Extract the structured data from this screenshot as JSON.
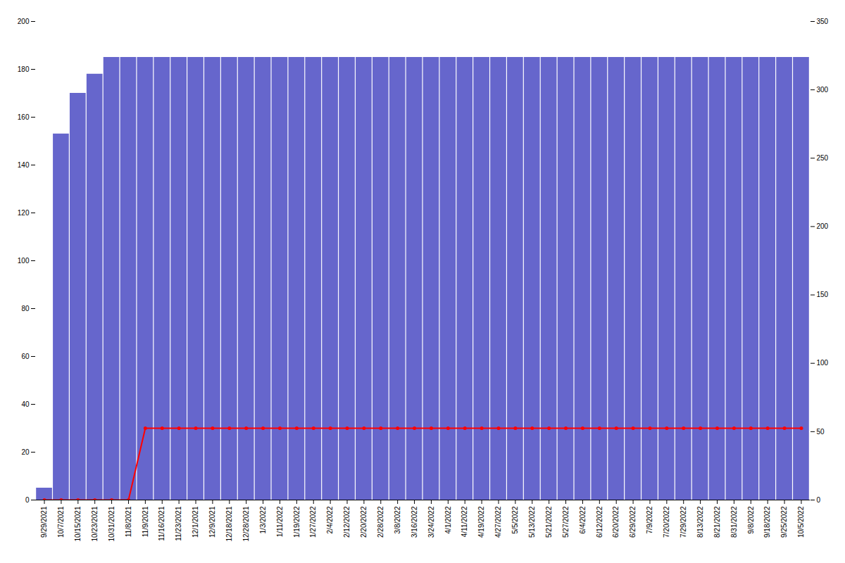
{
  "chart_data": {
    "type": "bar",
    "categories": [
      "9/29/2021",
      "10/7/2021",
      "10/15/2021",
      "10/23/2021",
      "10/31/2021",
      "11/8/2021",
      "11/9/2021",
      "11/16/2021",
      "11/23/2021",
      "12/1/2021",
      "12/9/2021",
      "12/18/2021",
      "12/28/2021",
      "1/3/2022",
      "1/11/2022",
      "1/19/2022",
      "1/27/2022",
      "2/4/2022",
      "2/12/2022",
      "2/20/2022",
      "2/28/2022",
      "3/8/2022",
      "3/16/2022",
      "3/24/2022",
      "4/1/2022",
      "4/11/2022",
      "4/19/2022",
      "4/27/2022",
      "5/5/2022",
      "5/13/2022",
      "5/21/2022",
      "5/27/2022",
      "6/4/2022",
      "6/12/2022",
      "6/20/2022",
      "6/29/2022",
      "7/9/2022",
      "7/20/2022",
      "7/29/2022",
      "8/13/2022",
      "8/21/2022",
      "8/31/2022",
      "9/8/2022",
      "9/18/2022",
      "9/25/2022",
      "10/5/2022"
    ],
    "series": [
      {
        "type": "bar",
        "color": "#6666cc",
        "values": [
          5,
          153,
          170,
          178,
          185,
          185,
          185,
          185,
          185,
          185,
          185,
          185,
          185,
          185,
          185,
          185,
          185,
          185,
          185,
          185,
          185,
          185,
          185,
          185,
          185,
          185,
          185,
          185,
          185,
          185,
          185,
          185,
          185,
          185,
          185,
          185,
          185,
          185,
          185,
          185,
          185,
          185,
          185,
          185,
          185,
          185
        ]
      },
      {
        "type": "line",
        "color": "#ff0000",
        "marker": "circle",
        "values": [
          0,
          0,
          0,
          0,
          0,
          0,
          30,
          30,
          30,
          30,
          30,
          30,
          30,
          30,
          30,
          30,
          30,
          30,
          30,
          30,
          30,
          30,
          30,
          30,
          30,
          30,
          30,
          30,
          30,
          30,
          30,
          30,
          30,
          30,
          30,
          30,
          30,
          30,
          30,
          30,
          30,
          30,
          30,
          30,
          30,
          30
        ]
      }
    ],
    "ylim": [
      0,
      200
    ],
    "yticks": [
      0,
      20,
      40,
      60,
      80,
      100,
      120,
      140,
      160,
      180,
      200
    ],
    "y2lim": [
      0,
      350
    ],
    "y2ticks": [
      0,
      50,
      100,
      150,
      200,
      250,
      300,
      350
    ],
    "grid": false
  }
}
